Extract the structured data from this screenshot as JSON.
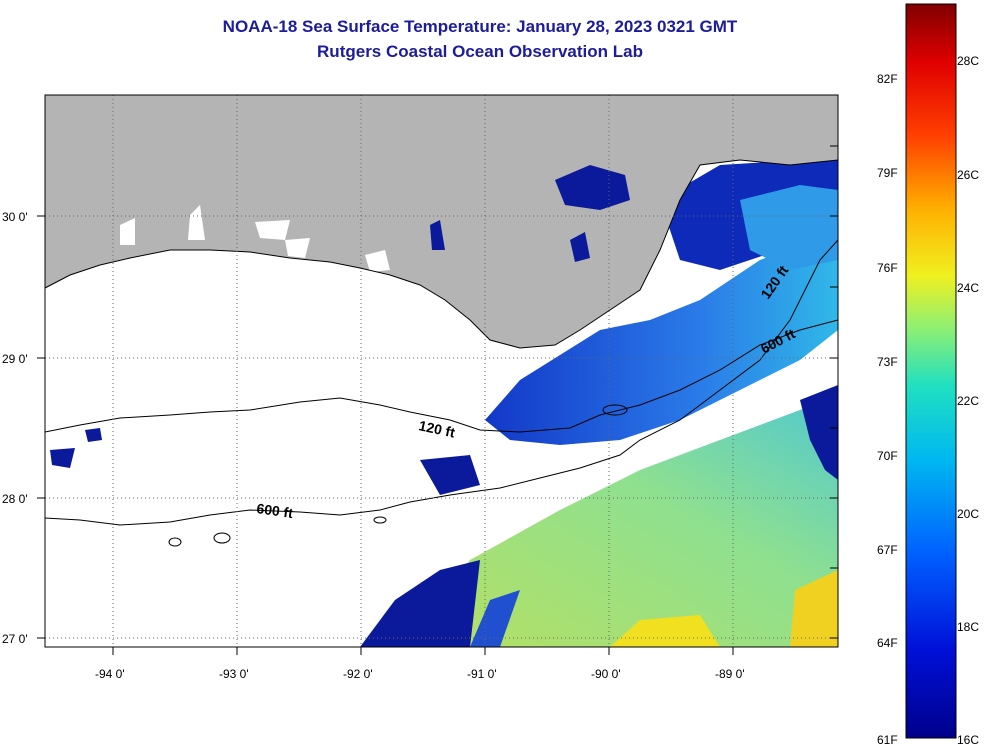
{
  "title": "NOAA-18 Sea Surface Temperature:  January 28, 2023 0321 GMT",
  "subtitle": "Rutgers Coastal Ocean Observation Lab",
  "axes": {
    "lon_ticks": [
      "-94 0'",
      "-93 0'",
      "-92 0'",
      "-91 0'",
      "-90 0'",
      "-89 0'"
    ],
    "lat_ticks": [
      "30 0'",
      "29 0'",
      "28 0'",
      "27 0'"
    ]
  },
  "contours": {
    "c120": "120 ft",
    "c600_west": "600 ft",
    "c600_east": "600 ft",
    "c120_east": "120 ft"
  },
  "colorbar": {
    "fahrenheit": [
      "82F",
      "79F",
      "76F",
      "73F",
      "70F",
      "67F",
      "64F",
      "61F"
    ],
    "celsius": [
      "28C",
      "26C",
      "24C",
      "22C",
      "20C",
      "18C",
      "16C"
    ]
  },
  "colors": {
    "land": "#b4b4b4",
    "cloud": "#ffffff",
    "title": "#1c1c9c",
    "cold": "#0a1a9a",
    "warm": "#c8e650"
  }
}
